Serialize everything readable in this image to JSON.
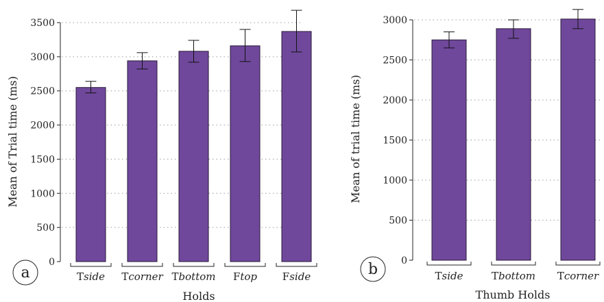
{
  "colors": {
    "bar": "#6f489b",
    "bar_edge": "#2a1a3a",
    "grid": "#9a9a9a",
    "text": "#222222"
  },
  "chart_data": [
    {
      "type": "bar",
      "panel_label": "a",
      "xlabel": "Holds",
      "ylabel": "Mean of Trial time (ms)",
      "ylim": [
        0,
        3500
      ],
      "yticks": [
        "0",
        "500",
        "1000",
        "1500",
        "2000",
        "2500",
        "3000",
        "3500"
      ],
      "grid": "horizontal dotted",
      "categories": [
        {
          "prefix": "T",
          "suffix": "side"
        },
        {
          "prefix": "T",
          "suffix": "corner"
        },
        {
          "prefix": "T",
          "suffix": "bottom"
        },
        {
          "prefix": "F",
          "suffix": "top"
        },
        {
          "prefix": "F",
          "suffix": "side"
        }
      ],
      "values": [
        2550,
        2940,
        3080,
        3160,
        3370
      ],
      "error_low": [
        2470,
        2820,
        2920,
        2930,
        3070
      ],
      "error_high": [
        2640,
        3060,
        3240,
        3400,
        3680
      ]
    },
    {
      "type": "bar",
      "panel_label": "b",
      "xlabel": "Thumb Holds",
      "ylabel": "Mean of trial time (ms)",
      "ylim": [
        0,
        3000
      ],
      "yticks": [
        "0",
        "500",
        "1000",
        "1500",
        "2000",
        "2500",
        "3000"
      ],
      "grid": "horizontal dotted",
      "categories": [
        {
          "prefix": "T",
          "suffix": "side"
        },
        {
          "prefix": "T",
          "suffix": "bottom"
        },
        {
          "prefix": "T",
          "suffix": "corner"
        }
      ],
      "values": [
        2750,
        2890,
        3010
      ],
      "error_low": [
        2650,
        2770,
        2890
      ],
      "error_high": [
        2850,
        3000,
        3130
      ]
    }
  ]
}
